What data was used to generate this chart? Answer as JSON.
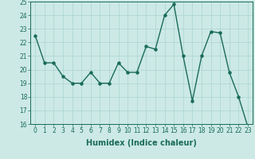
{
  "x": [
    0,
    1,
    2,
    3,
    4,
    5,
    6,
    7,
    8,
    9,
    10,
    11,
    12,
    13,
    14,
    15,
    16,
    17,
    18,
    19,
    20,
    21,
    22,
    23
  ],
  "y": [
    22.5,
    20.5,
    20.5,
    19.5,
    19.0,
    19.0,
    19.8,
    19.0,
    19.0,
    20.5,
    19.8,
    19.8,
    21.7,
    21.5,
    24.0,
    24.8,
    21.0,
    17.7,
    21.0,
    22.8,
    22.7,
    19.8,
    18.0,
    15.8
  ],
  "xlabel": "Humidex (Indice chaleur)",
  "line_color": "#1a6b5a",
  "bg_color": "#cce9e5",
  "grid_color": "#aad4cf",
  "ylim": [
    16,
    25
  ],
  "yticks": [
    16,
    17,
    18,
    19,
    20,
    21,
    22,
    23,
    24,
    25
  ],
  "xticks": [
    0,
    1,
    2,
    3,
    4,
    5,
    6,
    7,
    8,
    9,
    10,
    11,
    12,
    13,
    14,
    15,
    16,
    17,
    18,
    19,
    20,
    21,
    22,
    23
  ],
  "marker_size": 2.2,
  "line_width": 1.0,
  "tick_color": "#1a6b5a",
  "label_color": "#1a6b5a",
  "xlabel_fontsize": 7.0,
  "tick_fontsize": 5.5
}
